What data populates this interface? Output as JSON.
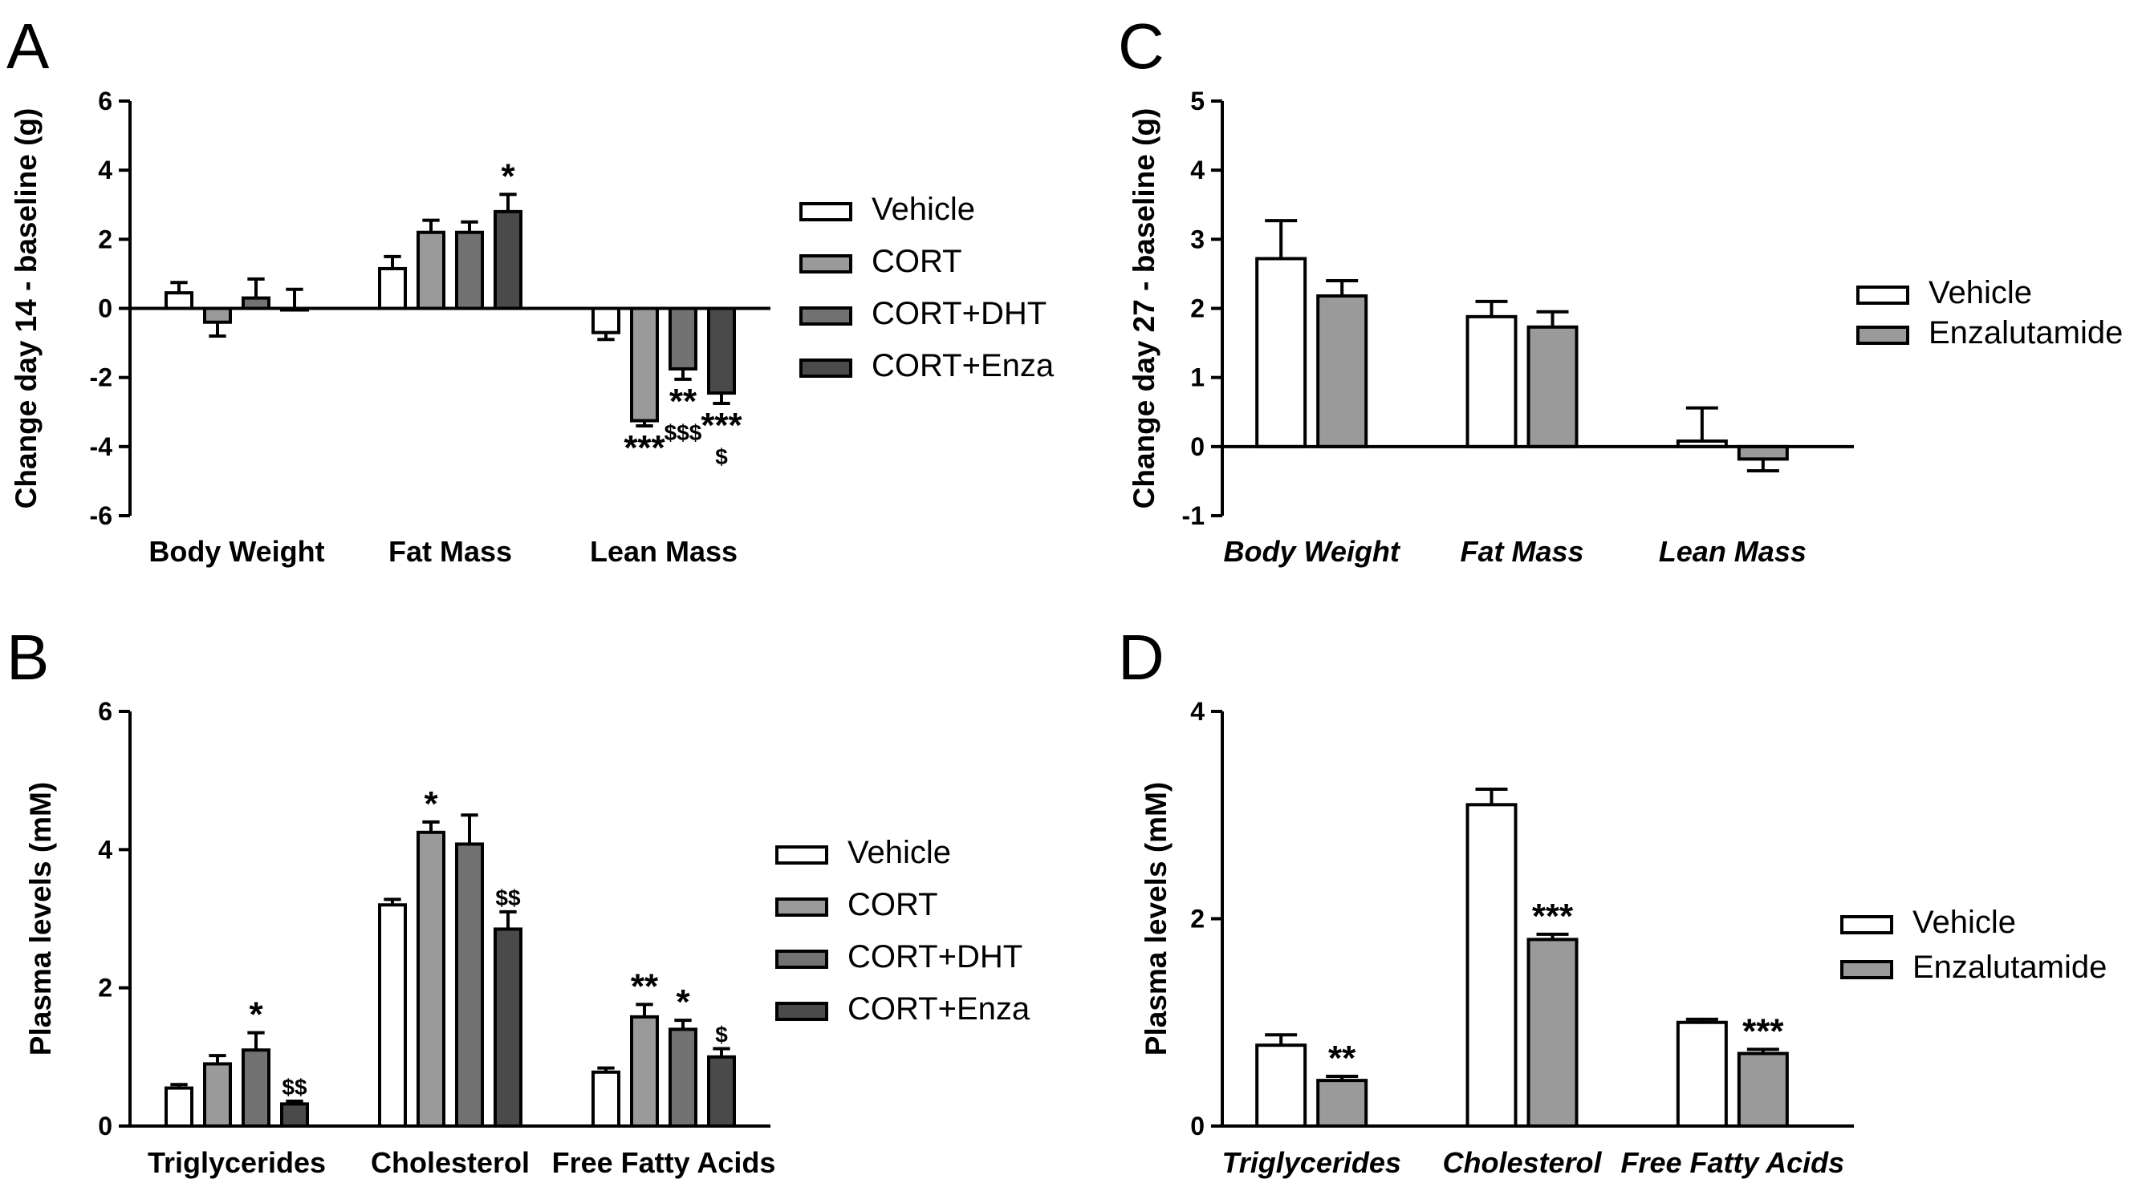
{
  "chart_data": [
    {
      "panel": "A",
      "type": "bar",
      "ylabel": "Change day 14 - baseline (g)",
      "ylim": [
        -6,
        6
      ],
      "yticks": [
        -6,
        -4,
        -2,
        0,
        2,
        4,
        6
      ],
      "categories": [
        "Body Weight",
        "Fat Mass",
        "Lean Mass"
      ],
      "category_style": "normal",
      "legend_position": "right",
      "series": [
        {
          "name": "Vehicle",
          "color": "#ffffff",
          "values": [
            0.45,
            1.15,
            -0.7
          ],
          "errors": [
            0.3,
            0.35,
            0.2
          ],
          "annotations": [
            "",
            "",
            ""
          ]
        },
        {
          "name": "CORT",
          "color": "#9a9a9a",
          "values": [
            -0.4,
            2.2,
            -3.25
          ],
          "errors": [
            0.4,
            0.35,
            0.15
          ],
          "annotations": [
            "",
            "",
            "***"
          ]
        },
        {
          "name": "CORT+DHT",
          "color": "#727272",
          "values": [
            0.3,
            2.2,
            -1.75
          ],
          "errors": [
            0.55,
            0.3,
            0.3
          ],
          "annotations": [
            "",
            "",
            "**\n$$$"
          ]
        },
        {
          "name": "CORT+Enza",
          "color": "#4a4a4a",
          "values": [
            0.0,
            2.8,
            -2.45
          ],
          "errors": [
            0.55,
            0.5,
            0.3
          ],
          "annotations": [
            "",
            "*",
            "***\n$"
          ]
        }
      ]
    },
    {
      "panel": "B",
      "type": "bar",
      "ylabel": "Plasma levels (mM)",
      "ylim": [
        0,
        6
      ],
      "yticks": [
        0,
        2,
        4,
        6
      ],
      "categories": [
        "Triglycerides",
        "Cholesterol",
        "Free Fatty Acids"
      ],
      "category_style": "normal",
      "legend_position": "right",
      "series": [
        {
          "name": "Vehicle",
          "color": "#ffffff",
          "values": [
            0.55,
            3.2,
            0.78
          ],
          "errors": [
            0.05,
            0.08,
            0.06
          ],
          "annotations": [
            "",
            "",
            ""
          ]
        },
        {
          "name": "CORT",
          "color": "#9a9a9a",
          "values": [
            0.9,
            4.25,
            1.58
          ],
          "errors": [
            0.12,
            0.15,
            0.18
          ],
          "annotations": [
            "",
            "*",
            "**"
          ]
        },
        {
          "name": "CORT+DHT",
          "color": "#727272",
          "values": [
            1.1,
            4.08,
            1.4
          ],
          "errors": [
            0.25,
            0.42,
            0.13
          ],
          "annotations": [
            "*",
            "",
            "*"
          ]
        },
        {
          "name": "CORT+Enza",
          "color": "#4a4a4a",
          "values": [
            0.32,
            2.85,
            1.0
          ],
          "errors": [
            0.04,
            0.25,
            0.12
          ],
          "annotations": [
            "$$",
            "$$",
            "$"
          ]
        }
      ]
    },
    {
      "panel": "C",
      "type": "bar",
      "ylabel": "Change day 27 - baseline (g)",
      "ylim": [
        -1,
        5
      ],
      "yticks": [
        -1,
        0,
        1,
        2,
        3,
        4,
        5
      ],
      "categories": [
        "Body Weight",
        "Fat Mass",
        "Lean Mass"
      ],
      "category_style": "italic",
      "legend_position": "right",
      "series": [
        {
          "name": "Vehicle",
          "color": "#ffffff",
          "values": [
            2.72,
            1.88,
            0.08
          ],
          "errors": [
            0.55,
            0.22,
            0.48
          ],
          "annotations": [
            "",
            "",
            ""
          ]
        },
        {
          "name": "Enzalutamide",
          "color": "#9a9a9a",
          "values": [
            2.18,
            1.73,
            -0.18
          ],
          "errors": [
            0.22,
            0.22,
            0.17
          ],
          "annotations": [
            "",
            "",
            ""
          ]
        }
      ]
    },
    {
      "panel": "D",
      "type": "bar",
      "ylabel": "Plasma levels (mM)",
      "ylim": [
        0,
        4
      ],
      "yticks": [
        0,
        2,
        4
      ],
      "categories": [
        "Triglycerides",
        "Cholesterol",
        "Free Fatty Acids"
      ],
      "category_style": "italic",
      "legend_position": "right",
      "series": [
        {
          "name": "Vehicle",
          "color": "#ffffff",
          "values": [
            0.78,
            3.1,
            1.0
          ],
          "errors": [
            0.1,
            0.15,
            0.03
          ],
          "annotations": [
            "",
            "",
            ""
          ]
        },
        {
          "name": "Enzalutamide",
          "color": "#9a9a9a",
          "values": [
            0.44,
            1.8,
            0.7
          ],
          "errors": [
            0.04,
            0.05,
            0.04
          ],
          "annotations": [
            "**",
            "***",
            "***"
          ]
        }
      ]
    }
  ]
}
